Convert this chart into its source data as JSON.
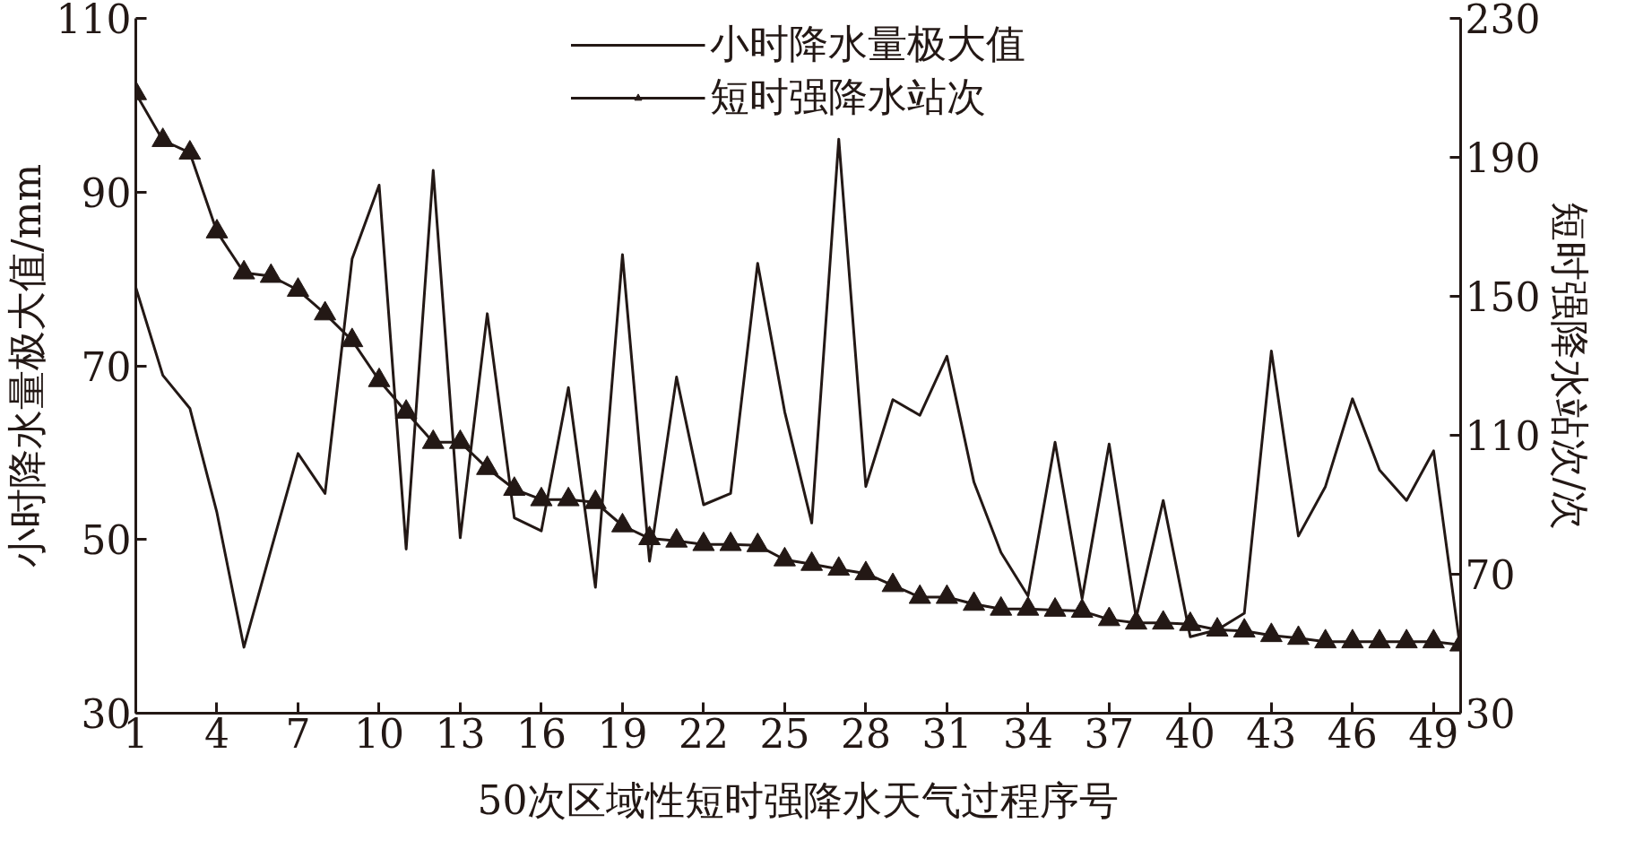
{
  "chart_data": {
    "type": "line",
    "xlabel": "50次区域性短时强降水天气过程序号",
    "ylabel": "小时降水量极大值/mm",
    "y2label": "短时强降水站次/次",
    "x": [
      1,
      2,
      3,
      4,
      5,
      6,
      7,
      8,
      9,
      10,
      11,
      12,
      13,
      14,
      15,
      16,
      17,
      18,
      19,
      20,
      21,
      22,
      23,
      24,
      25,
      26,
      27,
      28,
      29,
      30,
      31,
      32,
      33,
      34,
      35,
      36,
      37,
      38,
      39,
      40,
      41,
      42,
      43,
      44,
      45,
      46,
      47,
      48,
      49,
      50
    ],
    "xlim": [
      1,
      50
    ],
    "xticks": [
      1,
      4,
      7,
      10,
      13,
      16,
      19,
      22,
      25,
      28,
      31,
      34,
      37,
      40,
      43,
      46,
      49
    ],
    "ylim": [
      30,
      110
    ],
    "yticks": [
      30,
      50,
      70,
      90,
      110
    ],
    "y2lim": [
      30,
      230
    ],
    "y2ticks": [
      30,
      70,
      110,
      150,
      190,
      230
    ],
    "legend": "top",
    "grid": false,
    "series": [
      {
        "name": "小时降水量极大值",
        "color": "#231815",
        "marker": "none",
        "values": [
          79.0,
          68.9,
          65.1,
          53.1,
          37.6,
          48.8,
          59.9,
          55.3,
          82.3,
          90.8,
          48.9,
          92.5,
          50.2,
          76.0,
          52.5,
          51.0,
          67.5,
          44.5,
          82.8,
          47.5,
          68.7,
          54.0,
          55.3,
          81.8,
          64.7,
          51.9,
          96.1,
          56.1,
          66.1,
          64.3,
          71.1,
          56.6,
          48.5,
          43.5,
          61.2,
          43.2,
          61.0,
          41.0,
          54.5,
          38.8,
          39.6,
          41.5,
          71.7,
          50.4,
          56.1,
          66.2,
          58.0,
          54.5,
          60.2,
          37.2
        ]
      },
      {
        "name": "短时强降水站次",
        "color": "#231815",
        "marker": "triangle",
        "axis": "y2",
        "values": [
          208.4,
          194.9,
          191.3,
          168.6,
          156.8,
          155.8,
          151.8,
          145.0,
          137.3,
          125.8,
          116.7,
          108.0,
          108.0,
          100.5,
          94.5,
          91.5,
          91.5,
          90.7,
          84.0,
          80.3,
          79.6,
          78.6,
          78.6,
          78.3,
          74.2,
          72.9,
          71.5,
          70.2,
          66.8,
          63.4,
          63.4,
          61.4,
          60.0,
          60.0,
          59.7,
          59.4,
          57.0,
          56.0,
          56.0,
          55.6,
          54.0,
          53.7,
          52.4,
          51.6,
          50.6,
          50.6,
          50.6,
          50.6,
          50.6,
          49.7
        ]
      }
    ]
  }
}
